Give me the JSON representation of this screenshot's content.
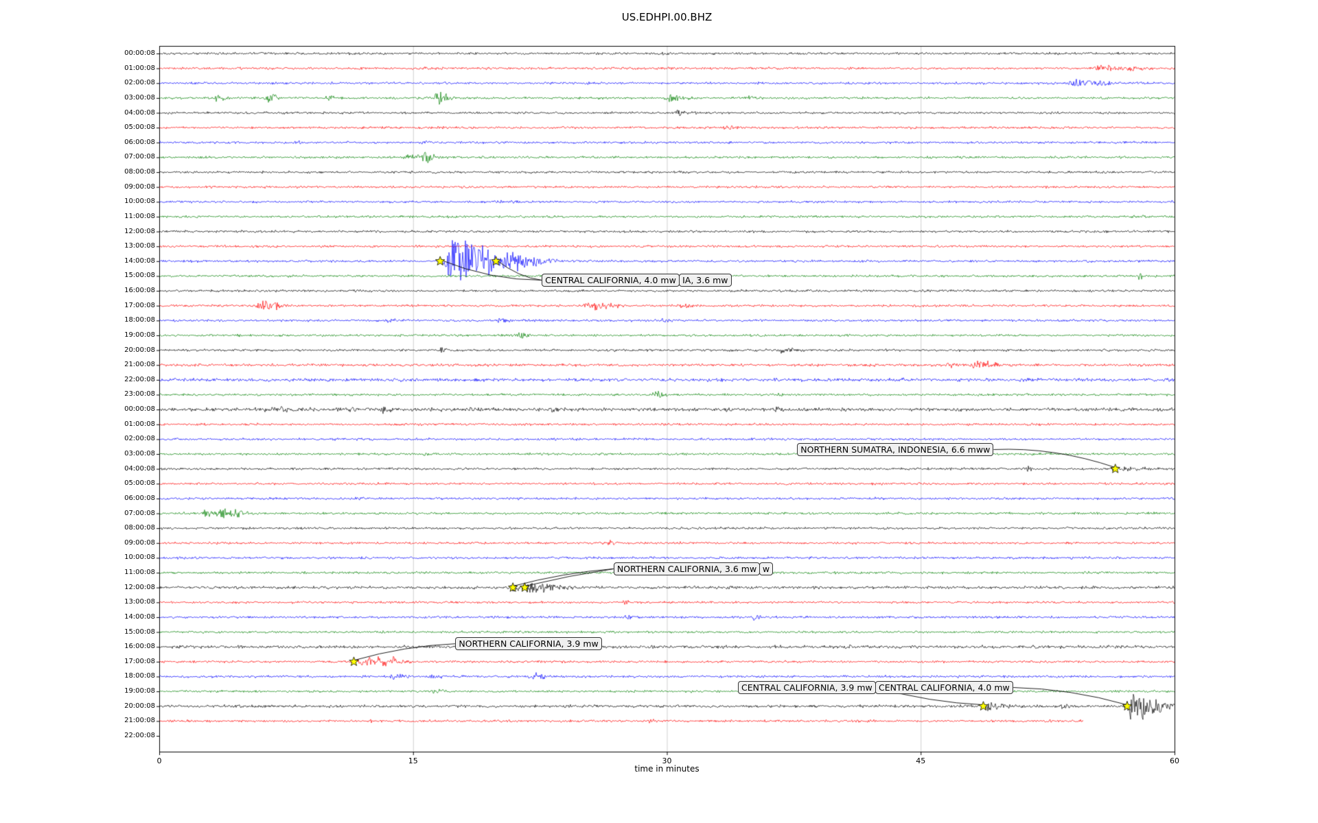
{
  "title": "US.EDHPI.00.BHZ",
  "axes": {
    "xlabel": "time in minutes"
  },
  "palette": {
    "cycle": [
      "#000000",
      "#ff0000",
      "#0000ff",
      "#008000"
    ],
    "grid": "#cfcfcf",
    "axis": "#000000",
    "star_fill": "#ffff00",
    "star_edge": "#000000",
    "annotation_bg": "#f0f0f0",
    "annotation_border": "#333333"
  },
  "chart_data": {
    "type": "line",
    "title": "US.EDHPI.00.BHZ",
    "xlabel": "time in minutes",
    "x_range_minutes": [
      0,
      60
    ],
    "x_ticks": [
      0,
      15,
      30,
      45,
      60
    ],
    "grid": "vertical-light",
    "rows": [
      {
        "label": "00:00:08",
        "events": [
          [
            29.6,
            2.5,
            0.3
          ]
        ]
      },
      {
        "label": "01:00:08",
        "events": [
          [
            15.6,
            2,
            0.3
          ],
          [
            55.6,
            5,
            0.6
          ],
          [
            57.3,
            4,
            0.5
          ]
        ]
      },
      {
        "label": "02:00:08",
        "events": [
          [
            35.4,
            2,
            0.3
          ],
          [
            54.0,
            6,
            0.6
          ],
          [
            55.6,
            4,
            0.4
          ]
        ]
      },
      {
        "label": "03:00:08",
        "events": [
          [
            3.4,
            5,
            0.3
          ],
          [
            6.4,
            7,
            0.3
          ],
          [
            9.9,
            3,
            0.3
          ],
          [
            16.4,
            10,
            0.35
          ],
          [
            30.1,
            5,
            0.5
          ],
          [
            34.8,
            3,
            0.4
          ]
        ]
      },
      {
        "label": "04:00:08",
        "events": [
          [
            30.6,
            5,
            0.3
          ]
        ]
      },
      {
        "label": "05:00:08",
        "events": [
          [
            33.5,
            3,
            0.4
          ]
        ]
      },
      {
        "label": "06:00:08",
        "events": [
          [
            8.1,
            2,
            0.3
          ],
          [
            15.5,
            2.5,
            0.3
          ]
        ]
      },
      {
        "label": "07:00:08",
        "events": [
          [
            14.9,
            6,
            0.7
          ],
          [
            15.7,
            9,
            0.25
          ]
        ]
      },
      {
        "label": "08:00:08",
        "events": []
      },
      {
        "label": "09:00:08",
        "events": []
      },
      {
        "label": "10:00:08",
        "events": [
          [
            20,
            1.5,
            0.5
          ]
        ]
      },
      {
        "label": "11:00:08",
        "events": [
          [
            58,
            2,
            0.2
          ]
        ]
      },
      {
        "label": "12:00:08",
        "events": []
      },
      {
        "label": "13:00:08",
        "events": []
      },
      {
        "label": "14:00:08",
        "events": [
          [
            17.4,
            32,
            1.0
          ],
          [
            18.6,
            10,
            1.5
          ],
          [
            20.8,
            12,
            1.0
          ]
        ]
      },
      {
        "label": "15:00:08",
        "events": [
          [
            57.9,
            4,
            0.2
          ]
        ]
      },
      {
        "label": "16:00:08",
        "events": []
      },
      {
        "label": "17:00:08",
        "events": [
          [
            5.9,
            7,
            0.5
          ],
          [
            6.9,
            5,
            0.3
          ],
          [
            25.4,
            7,
            0.6
          ],
          [
            26.6,
            4,
            0.3
          ],
          [
            30.9,
            4,
            0.4
          ]
        ]
      },
      {
        "label": "18:00:08",
        "events": [
          [
            13.4,
            3.5,
            0.3
          ],
          [
            20.1,
            3.5,
            0.4
          ],
          [
            29.8,
            2.5,
            0.3
          ]
        ]
      },
      {
        "label": "19:00:08",
        "events": [
          [
            21.2,
            5,
            0.4
          ]
        ]
      },
      {
        "label": "20:00:08",
        "events": [
          [
            16.6,
            4,
            0.2
          ],
          [
            36.8,
            3.5,
            0.5
          ],
          [
            37.6,
            2.5,
            0.3
          ]
        ]
      },
      {
        "label": "21:00:08",
        "noise": 1.2,
        "events": [
          [
            46.6,
            4,
            0.4
          ],
          [
            48.3,
            6,
            0.5
          ],
          [
            48.9,
            4,
            0.3
          ]
        ]
      },
      {
        "label": "22:00:08",
        "noise": 1.4,
        "events": [
          [
            36.2,
            2.5,
            0.3
          ]
        ]
      },
      {
        "label": "23:00:08",
        "events": [
          [
            29.3,
            5,
            0.3
          ],
          [
            36.5,
            3,
            0.2
          ]
        ]
      },
      {
        "label": "00:00:08",
        "noise": 1.5,
        "events": [
          [
            6.3,
            4,
            0.3
          ],
          [
            7.3,
            4,
            0.3
          ],
          [
            8.3,
            3,
            0.3
          ],
          [
            11.3,
            3.5,
            0.3
          ],
          [
            13.2,
            3.5,
            0.4
          ],
          [
            18.4,
            3,
            0.3
          ],
          [
            23.2,
            2.5,
            0.3
          ],
          [
            36.5,
            4,
            0.2
          ]
        ]
      },
      {
        "label": "01:00:08",
        "events": []
      },
      {
        "label": "02:00:08",
        "events": [
          [
            15.5,
            1.5,
            0.3
          ]
        ]
      },
      {
        "label": "03:00:08",
        "events": [
          [
            15.6,
            2.5,
            0.2
          ]
        ]
      },
      {
        "label": "04:00:08",
        "events": [
          [
            48.1,
            3,
            0.25
          ],
          [
            51.2,
            4,
            0.25
          ],
          [
            56.5,
            2.5,
            1.2
          ]
        ]
      },
      {
        "label": "05:00:08",
        "events": []
      },
      {
        "label": "06:00:08",
        "events": [
          [
            11.9,
            2.5,
            0.3
          ]
        ]
      },
      {
        "label": "07:00:08",
        "events": [
          [
            2.7,
            5,
            0.4
          ],
          [
            3.7,
            7,
            0.5
          ],
          [
            4.6,
            5,
            0.3
          ]
        ]
      },
      {
        "label": "08:00:08",
        "events": []
      },
      {
        "label": "09:00:08",
        "events": [
          [
            26.6,
            3,
            0.4
          ]
        ]
      },
      {
        "label": "10:00:08",
        "events": [
          [
            23,
            1.5,
            0.4
          ]
        ]
      },
      {
        "label": "11:00:08",
        "events": [
          [
            33,
            2,
            0.3
          ]
        ]
      },
      {
        "label": "12:00:08",
        "noise": 1.2,
        "events": [
          [
            20.9,
            7,
            0.35
          ],
          [
            21.7,
            9,
            0.6
          ],
          [
            22.8,
            5,
            0.8
          ]
        ]
      },
      {
        "label": "13:00:08",
        "events": [
          [
            27.4,
            4,
            0.2
          ]
        ]
      },
      {
        "label": "14:00:08",
        "events": [
          [
            27.6,
            3,
            0.3
          ],
          [
            35.1,
            3.5,
            0.4
          ]
        ]
      },
      {
        "label": "15:00:08",
        "events": []
      },
      {
        "label": "16:00:08",
        "noise": 1.3,
        "events": [
          [
            40.6,
            3,
            0.3
          ]
        ]
      },
      {
        "label": "17:00:08",
        "events": [
          [
            11.9,
            6,
            0.4
          ],
          [
            12.6,
            8,
            0.7
          ],
          [
            13.7,
            4,
            0.5
          ]
        ]
      },
      {
        "label": "18:00:08",
        "events": [
          [
            13.9,
            5,
            0.4
          ],
          [
            16.1,
            3,
            0.3
          ],
          [
            22.1,
            5,
            0.5
          ]
        ]
      },
      {
        "label": "19:00:08",
        "events": [
          [
            16.2,
            4,
            0.3
          ]
        ]
      },
      {
        "label": "20:00:08",
        "noise": 1.2,
        "events": [
          [
            48.9,
            6,
            0.7
          ],
          [
            53.3,
            4,
            0.2
          ],
          [
            57.5,
            20,
            0.7
          ],
          [
            58.2,
            8,
            1.0
          ]
        ]
      },
      {
        "label": "21:00:08",
        "length": 54.6,
        "events": [
          [
            12.5,
            3,
            0.2
          ],
          [
            29,
            2,
            0.3
          ],
          [
            41.8,
            2.5,
            0.2
          ]
        ]
      },
      {
        "label": "22:00:08",
        "length": 0,
        "events": []
      }
    ],
    "marked_events": [
      {
        "row": 14,
        "minute": 16.6
      },
      {
        "row": 14,
        "minute": 19.9
      },
      {
        "row": 28,
        "minute": 56.5
      },
      {
        "row": 36,
        "minute": 20.9
      },
      {
        "row": 36,
        "minute": 21.6
      },
      {
        "row": 41,
        "minute": 11.5
      },
      {
        "row": 44,
        "minute": 48.7
      },
      {
        "row": 44,
        "minute": 57.2
      }
    ],
    "annotations": [
      {
        "text": "CENTRAL CALIFORNIA, 4.0 mw",
        "minute": 22.6,
        "row_pos": 14.84,
        "stars": [
          0,
          1
        ],
        "bends": [
          14,
          10
        ],
        "side": "left"
      },
      {
        "text": "IA, 3.6 mw",
        "attach_to_prev": true,
        "row_pos": 14.84,
        "stars": [],
        "bends": []
      },
      {
        "text": "NORTHERN SUMATRA, INDONESIA, 6.6 mww",
        "minute": 37.7,
        "row_pos": 26.26,
        "stars": [
          2
        ],
        "bends": [
          -18
        ],
        "side": "right"
      },
      {
        "text": "NORTHERN CALIFORNIA, 3.6 mw",
        "minute": 26.85,
        "row_pos": 34.3,
        "stars": [
          3,
          4
        ],
        "bends": [
          -8,
          -4
        ],
        "side": "left"
      },
      {
        "text": "w",
        "attach_to_prev": true,
        "row_pos": 34.3,
        "stars": [],
        "bends": []
      },
      {
        "text": "NORTHERN CALIFORNIA, 3.9 mw",
        "minute": 17.5,
        "row_pos": 39.35,
        "stars": [
          5
        ],
        "bends": [
          -10
        ],
        "side": "left"
      },
      {
        "text": "CENTRAL CALIFORNIA, 3.9 mw",
        "minute": 34.2,
        "row_pos": 42.3,
        "stars": [
          6
        ],
        "bends": [
          8
        ],
        "side": "right"
      },
      {
        "text": "CENTRAL CALIFORNIA, 4.0 mw",
        "attach_to_prev": true,
        "row_pos": 42.3,
        "stars": [
          7
        ],
        "bends": [
          -12
        ],
        "side": "right"
      }
    ]
  }
}
